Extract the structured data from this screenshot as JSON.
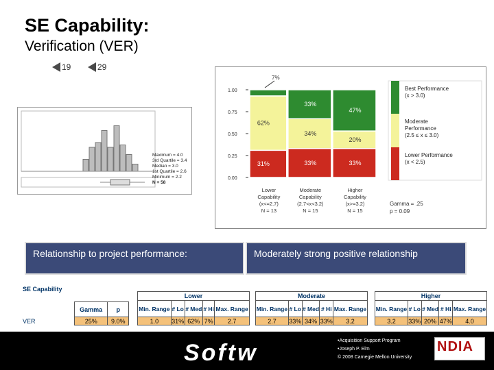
{
  "slide": {
    "title": "SE Capability:",
    "subtitle": "Verification (VER)"
  },
  "nav": {
    "prev_label": "19",
    "next_label": "29"
  },
  "histogram": {
    "bars": [
      0.25,
      0.5,
      0.6,
      0.85,
      0.5,
      0.95,
      0.55,
      0.35,
      0.15
    ],
    "stats": [
      "Maximum = 4.0",
      "3rd Quartile = 3.4",
      "Median = 3.0",
      "1st Quartile = 2.6",
      "Minimum = 2.2",
      "N = 58"
    ]
  },
  "mosaic": {
    "y_ticks": [
      "1.00",
      "0.75",
      "0.50",
      "0.25",
      "0.00"
    ],
    "top_label": "7%",
    "columns": [
      {
        "label_lines": [
          "Lower",
          "Capability",
          "(x<=2.7)",
          "N = 13"
        ],
        "width": 0.3,
        "segments": [
          {
            "value": 0.31,
            "label": "31%",
            "color": "#cc2a1f"
          },
          {
            "value": 0.62,
            "label": "62%",
            "color": "#f4f39a"
          },
          {
            "value": 0.07,
            "label": "",
            "color": "#2e8b30"
          }
        ]
      },
      {
        "label_lines": [
          "Moderate",
          "Capability",
          "(2.7<x<3.2)",
          "N = 15"
        ],
        "width": 0.35,
        "segments": [
          {
            "value": 0.33,
            "label": "33%",
            "color": "#cc2a1f"
          },
          {
            "value": 0.34,
            "label": "34%",
            "color": "#f4f39a"
          },
          {
            "value": 0.33,
            "label": "33%",
            "color": "#2e8b30"
          }
        ]
      },
      {
        "label_lines": [
          "Higher",
          "Capability",
          "(x>=3.2)",
          "N = 15"
        ],
        "width": 0.35,
        "segments": [
          {
            "value": 0.33,
            "label": "33%",
            "color": "#cc2a1f"
          },
          {
            "value": 0.2,
            "label": "20%",
            "color": "#f4f39a"
          },
          {
            "value": 0.47,
            "label": "47%",
            "color": "#2e8b30"
          }
        ]
      }
    ],
    "legend": [
      {
        "label_lines": [
          "Best Performance",
          "(x > 3.0)"
        ],
        "color": "#2e8b30"
      },
      {
        "label_lines": [
          "Moderate",
          "Performance",
          "(2.5 ≤ x ≤ 3.0)"
        ],
        "color": "#f4f39a"
      },
      {
        "label_lines": [
          "Lower Performance",
          "(x < 2.5)"
        ],
        "color": "#cc2a1f"
      }
    ],
    "gamma": "Gamma = .25",
    "p": "p = 0.09"
  },
  "relationship": {
    "label": "Relationship to project performance:",
    "value": "Moderately strong positive relationship"
  },
  "summary_table": {
    "title": "SE Capability",
    "row_label": "VER",
    "gamma_header": "Gamma",
    "p_header": "p",
    "gamma": "25%",
    "p": "9.0%",
    "groups": [
      {
        "name": "Lower",
        "headers": [
          "Min. Range",
          "# Lo",
          "# Med",
          "# Hi",
          "Max. Range"
        ],
        "values": [
          "1.0",
          "31%",
          "62%",
          "7%",
          "2.7"
        ]
      },
      {
        "name": "Moderate",
        "headers": [
          "Min. Range",
          "# Lo",
          "# Med",
          "# Hi",
          "Max. Range"
        ],
        "values": [
          "2.7",
          "33%",
          "34%",
          "33%",
          "3.2"
        ]
      },
      {
        "name": "Higher",
        "headers": [
          "Min. Range",
          "# Lo",
          "# Med",
          "# Hi",
          "Max. Range"
        ],
        "values": [
          "3.2",
          "33%",
          "20%",
          "47%",
          "4.0"
        ]
      }
    ]
  },
  "footer": {
    "logo_text": "Softw",
    "lines": [
      "•Acquisition Support Program",
      "•Joseph P. Elm",
      "© 2008 Carnegie Mellon University"
    ],
    "ndia": "NDIA"
  }
}
